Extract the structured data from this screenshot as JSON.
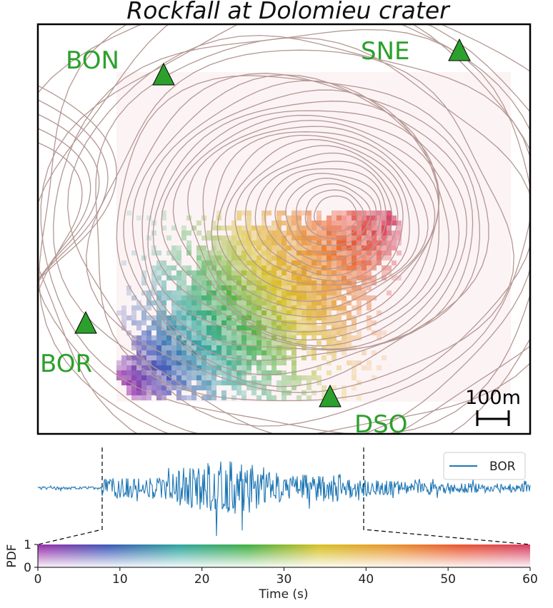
{
  "chart_data": [
    {
      "type": "heatmap",
      "title": "Rockfall at Dolomieu crater",
      "stations": [
        {
          "name": "BON",
          "marker": "triangle"
        },
        {
          "name": "SNE",
          "marker": "triangle"
        },
        {
          "name": "BOR",
          "marker": "triangle"
        },
        {
          "name": "DSO",
          "marker": "triangle"
        }
      ],
      "scale_bar": "100m",
      "colors": {
        "station": "#2ca02c",
        "contour": "#b49893",
        "frame": "#000000"
      }
    },
    {
      "type": "line",
      "series": [
        {
          "name": "BOR",
          "color": "#1f77b4"
        }
      ],
      "legend": "top-right",
      "window_s": [
        7.9,
        39.5
      ]
    },
    {
      "type": "heatmap",
      "ylabel": "PDF",
      "yticks": [
        "0",
        "1"
      ],
      "xlabel": "Time (s)",
      "xlim": [
        0,
        60
      ],
      "xticks": [
        "0",
        "10",
        "20",
        "30",
        "40",
        "50",
        "60"
      ],
      "colormap": [
        "#9c2aa8",
        "#3a57b7",
        "#2aa39e",
        "#3fae3f",
        "#d6c020",
        "#e8942a",
        "#e8532d",
        "#d63b63"
      ]
    }
  ]
}
